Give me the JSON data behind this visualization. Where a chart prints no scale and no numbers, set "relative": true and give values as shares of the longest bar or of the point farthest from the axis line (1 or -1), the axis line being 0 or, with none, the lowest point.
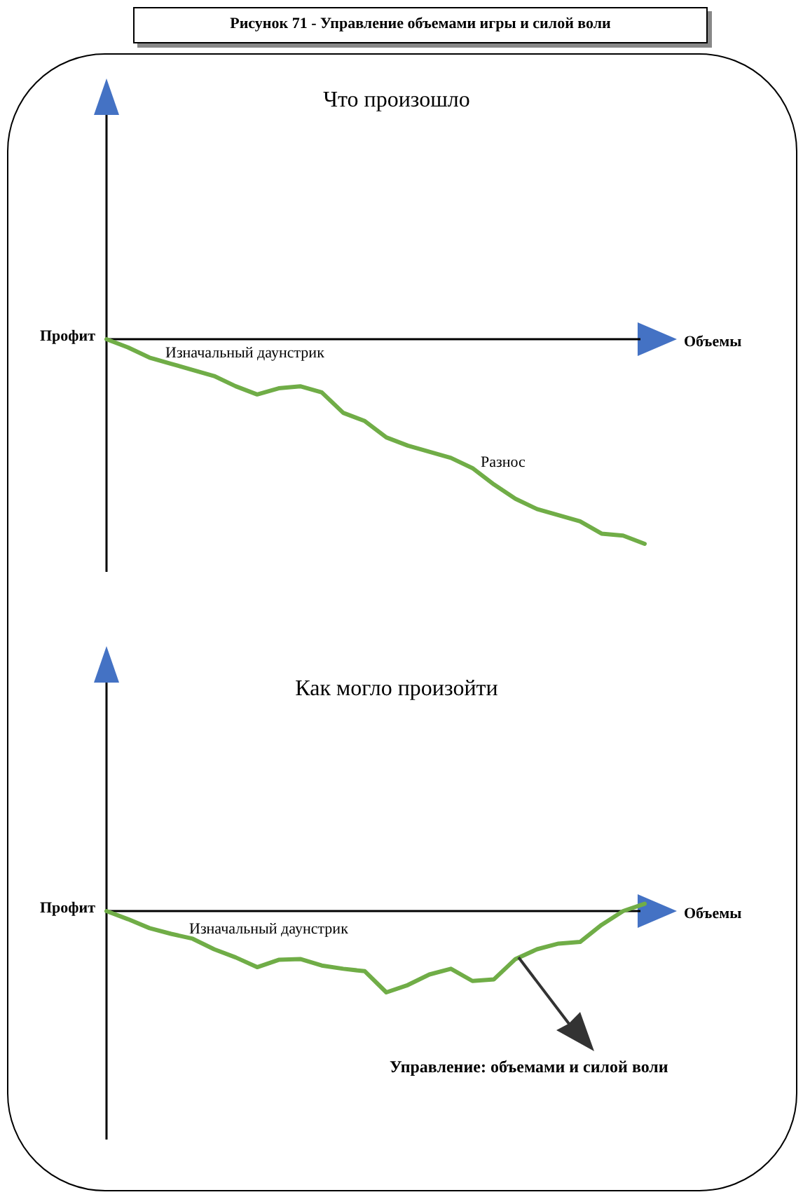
{
  "chart_data": [
    {
      "type": "line",
      "relative": true,
      "title": "Что произошло",
      "xlabel": "Объемы",
      "ylabel": "Профит",
      "annotations": [
        "Рисунок 71 - Управление объемами игры и силой воли",
        "Изначальный даунстрик",
        "Разнос"
      ],
      "categories": [
        null,
        null,
        null,
        null,
        null,
        null,
        null,
        null,
        null,
        null,
        null,
        null,
        null,
        null,
        null,
        null,
        null,
        null,
        null,
        null,
        null,
        null,
        null,
        null,
        null,
        null
      ],
      "series": [
        {
          "color": "#70ad47",
          "values": [
            0,
            -0.04,
            -0.09,
            -0.12,
            -0.15,
            -0.18,
            -0.23,
            -0.27,
            -0.24,
            -0.23,
            -0.26,
            -0.36,
            -0.4,
            -0.48,
            -0.52,
            -0.55,
            -0.58,
            -0.63,
            -0.71,
            -0.78,
            -0.83,
            -0.86,
            -0.89,
            -0.95,
            -0.96,
            -1
          ]
        }
      ]
    },
    {
      "type": "line",
      "relative": true,
      "title": "Как могло произойти",
      "xlabel": "Объемы",
      "ylabel": "Профит",
      "annotations": [
        "Изначальный даунстрик",
        "Управление: объемами и силой воли"
      ],
      "categories": [
        null,
        null,
        null,
        null,
        null,
        null,
        null,
        null,
        null,
        null,
        null,
        null,
        null,
        null,
        null,
        null,
        null,
        null,
        null,
        null,
        null,
        null,
        null,
        null,
        null,
        null
      ],
      "series": [
        {
          "color": "#70ad47",
          "values": [
            0,
            -0.1,
            -0.21,
            -0.28,
            -0.34,
            -0.47,
            -0.57,
            -0.69,
            -0.6,
            -0.59,
            -0.67,
            -0.71,
            -0.74,
            -1,
            -0.91,
            -0.78,
            -0.71,
            -0.86,
            -0.84,
            -0.59,
            -0.47,
            -0.4,
            -0.38,
            -0.17,
            0,
            0.09
          ]
        }
      ]
    }
  ]
}
